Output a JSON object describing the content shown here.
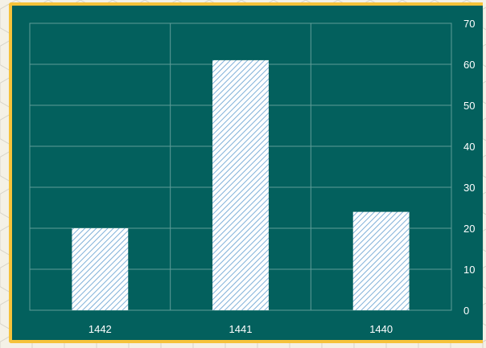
{
  "chart_data": {
    "type": "bar",
    "categories": [
      "1442",
      "1441",
      "1440"
    ],
    "values": [
      20,
      61,
      24
    ],
    "ylim": [
      0,
      70
    ],
    "yticks": [
      "0",
      "10",
      "20",
      "30",
      "40",
      "50",
      "60",
      "70"
    ],
    "y_axis_side": "right",
    "grid": true,
    "bar_fill": "hatched",
    "colors": {
      "plot_background": "#03605d",
      "frame_border": "#f6c23a",
      "gridline": "#5f9c98",
      "bar_hatch": "#7fb0d8",
      "bar_base": "#ffffff",
      "text": "#ffffff"
    }
  }
}
